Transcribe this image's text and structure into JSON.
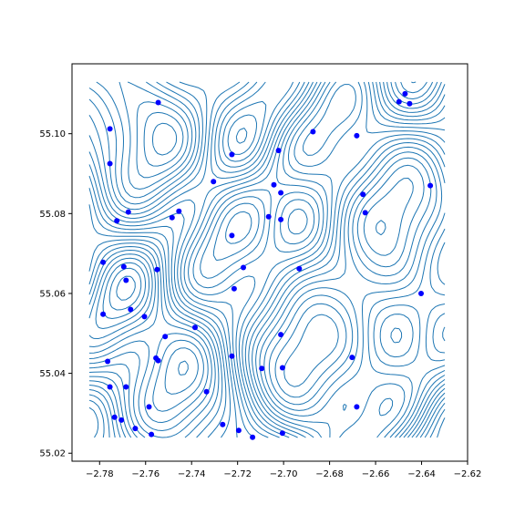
{
  "chart_data": {
    "type": "scatter",
    "title": "",
    "xlabel": "",
    "ylabel": "",
    "xlim": [
      -2.792,
      -2.62
    ],
    "ylim": [
      55.018,
      55.1175
    ],
    "xticks": [
      -2.78,
      -2.76,
      -2.74,
      -2.72,
      -2.7,
      -2.68,
      -2.66,
      -2.64,
      -2.62
    ],
    "xtick_labels": [
      "−2.78",
      "−2.76",
      "−2.74",
      "−2.72",
      "−2.70",
      "−2.68",
      "−2.66",
      "−2.64",
      "−2.62"
    ],
    "yticks": [
      55.02,
      55.04,
      55.06,
      55.08,
      55.1
    ],
    "ytick_labels": [
      "55.02",
      "55.04",
      "55.06",
      "55.08",
      "55.10"
    ],
    "grid": false,
    "legend": "none",
    "colors": {
      "contour": "#1f77b4",
      "points": "#0000ff",
      "frame": "#000000"
    },
    "series": [
      {
        "kind": "points",
        "x": [
          -2.7755,
          -2.7545,
          -2.7225,
          -2.7022,
          -2.6872,
          -2.6682,
          -2.6498,
          -2.6472,
          -2.6452,
          -2.7755,
          -2.7042,
          -2.7012,
          -2.7305,
          -2.6362,
          -2.7725,
          -2.7675,
          -2.7485,
          -2.7455,
          -2.7225,
          -2.7065,
          -2.7012,
          -2.6655,
          -2.6645,
          -2.7785,
          -2.7695,
          -2.7685,
          -2.755,
          -2.7175,
          -2.6932,
          -2.6402,
          -2.7665,
          -2.7215,
          -2.7785,
          -2.7605,
          -2.7555,
          -2.7515,
          -2.7385,
          -2.7012,
          -2.7765,
          -2.7545,
          -2.7225,
          -2.7095,
          -2.7005,
          -2.6702,
          -2.7755,
          -2.7685,
          -2.7335,
          -2.7585,
          -2.6682,
          -2.7735,
          -2.7705,
          -2.7645,
          -2.7575,
          -2.7265,
          -2.7195,
          -2.7135,
          -2.7005
        ],
        "y": [
          55.1012,
          55.1078,
          55.0948,
          55.0958,
          55.1005,
          55.0995,
          55.108,
          55.11,
          55.1075,
          55.0925,
          55.0872,
          55.0852,
          55.088,
          55.087,
          55.0782,
          55.0804,
          55.079,
          55.0806,
          55.0745,
          55.0792,
          55.0785,
          55.0848,
          55.0802,
          55.0678,
          55.0667,
          55.0633,
          55.066,
          55.0665,
          55.0662,
          55.06,
          55.056,
          55.0612,
          55.0548,
          55.0542,
          55.0438,
          55.0492,
          55.0515,
          55.0497,
          55.043,
          55.0432,
          55.0443,
          55.0412,
          55.0414,
          55.044,
          55.0366,
          55.0366,
          55.0354,
          55.0316,
          55.0316,
          55.029,
          55.0283,
          55.0262,
          55.0247,
          55.0272,
          55.0257,
          55.024,
          55.025
        ]
      }
    ]
  }
}
